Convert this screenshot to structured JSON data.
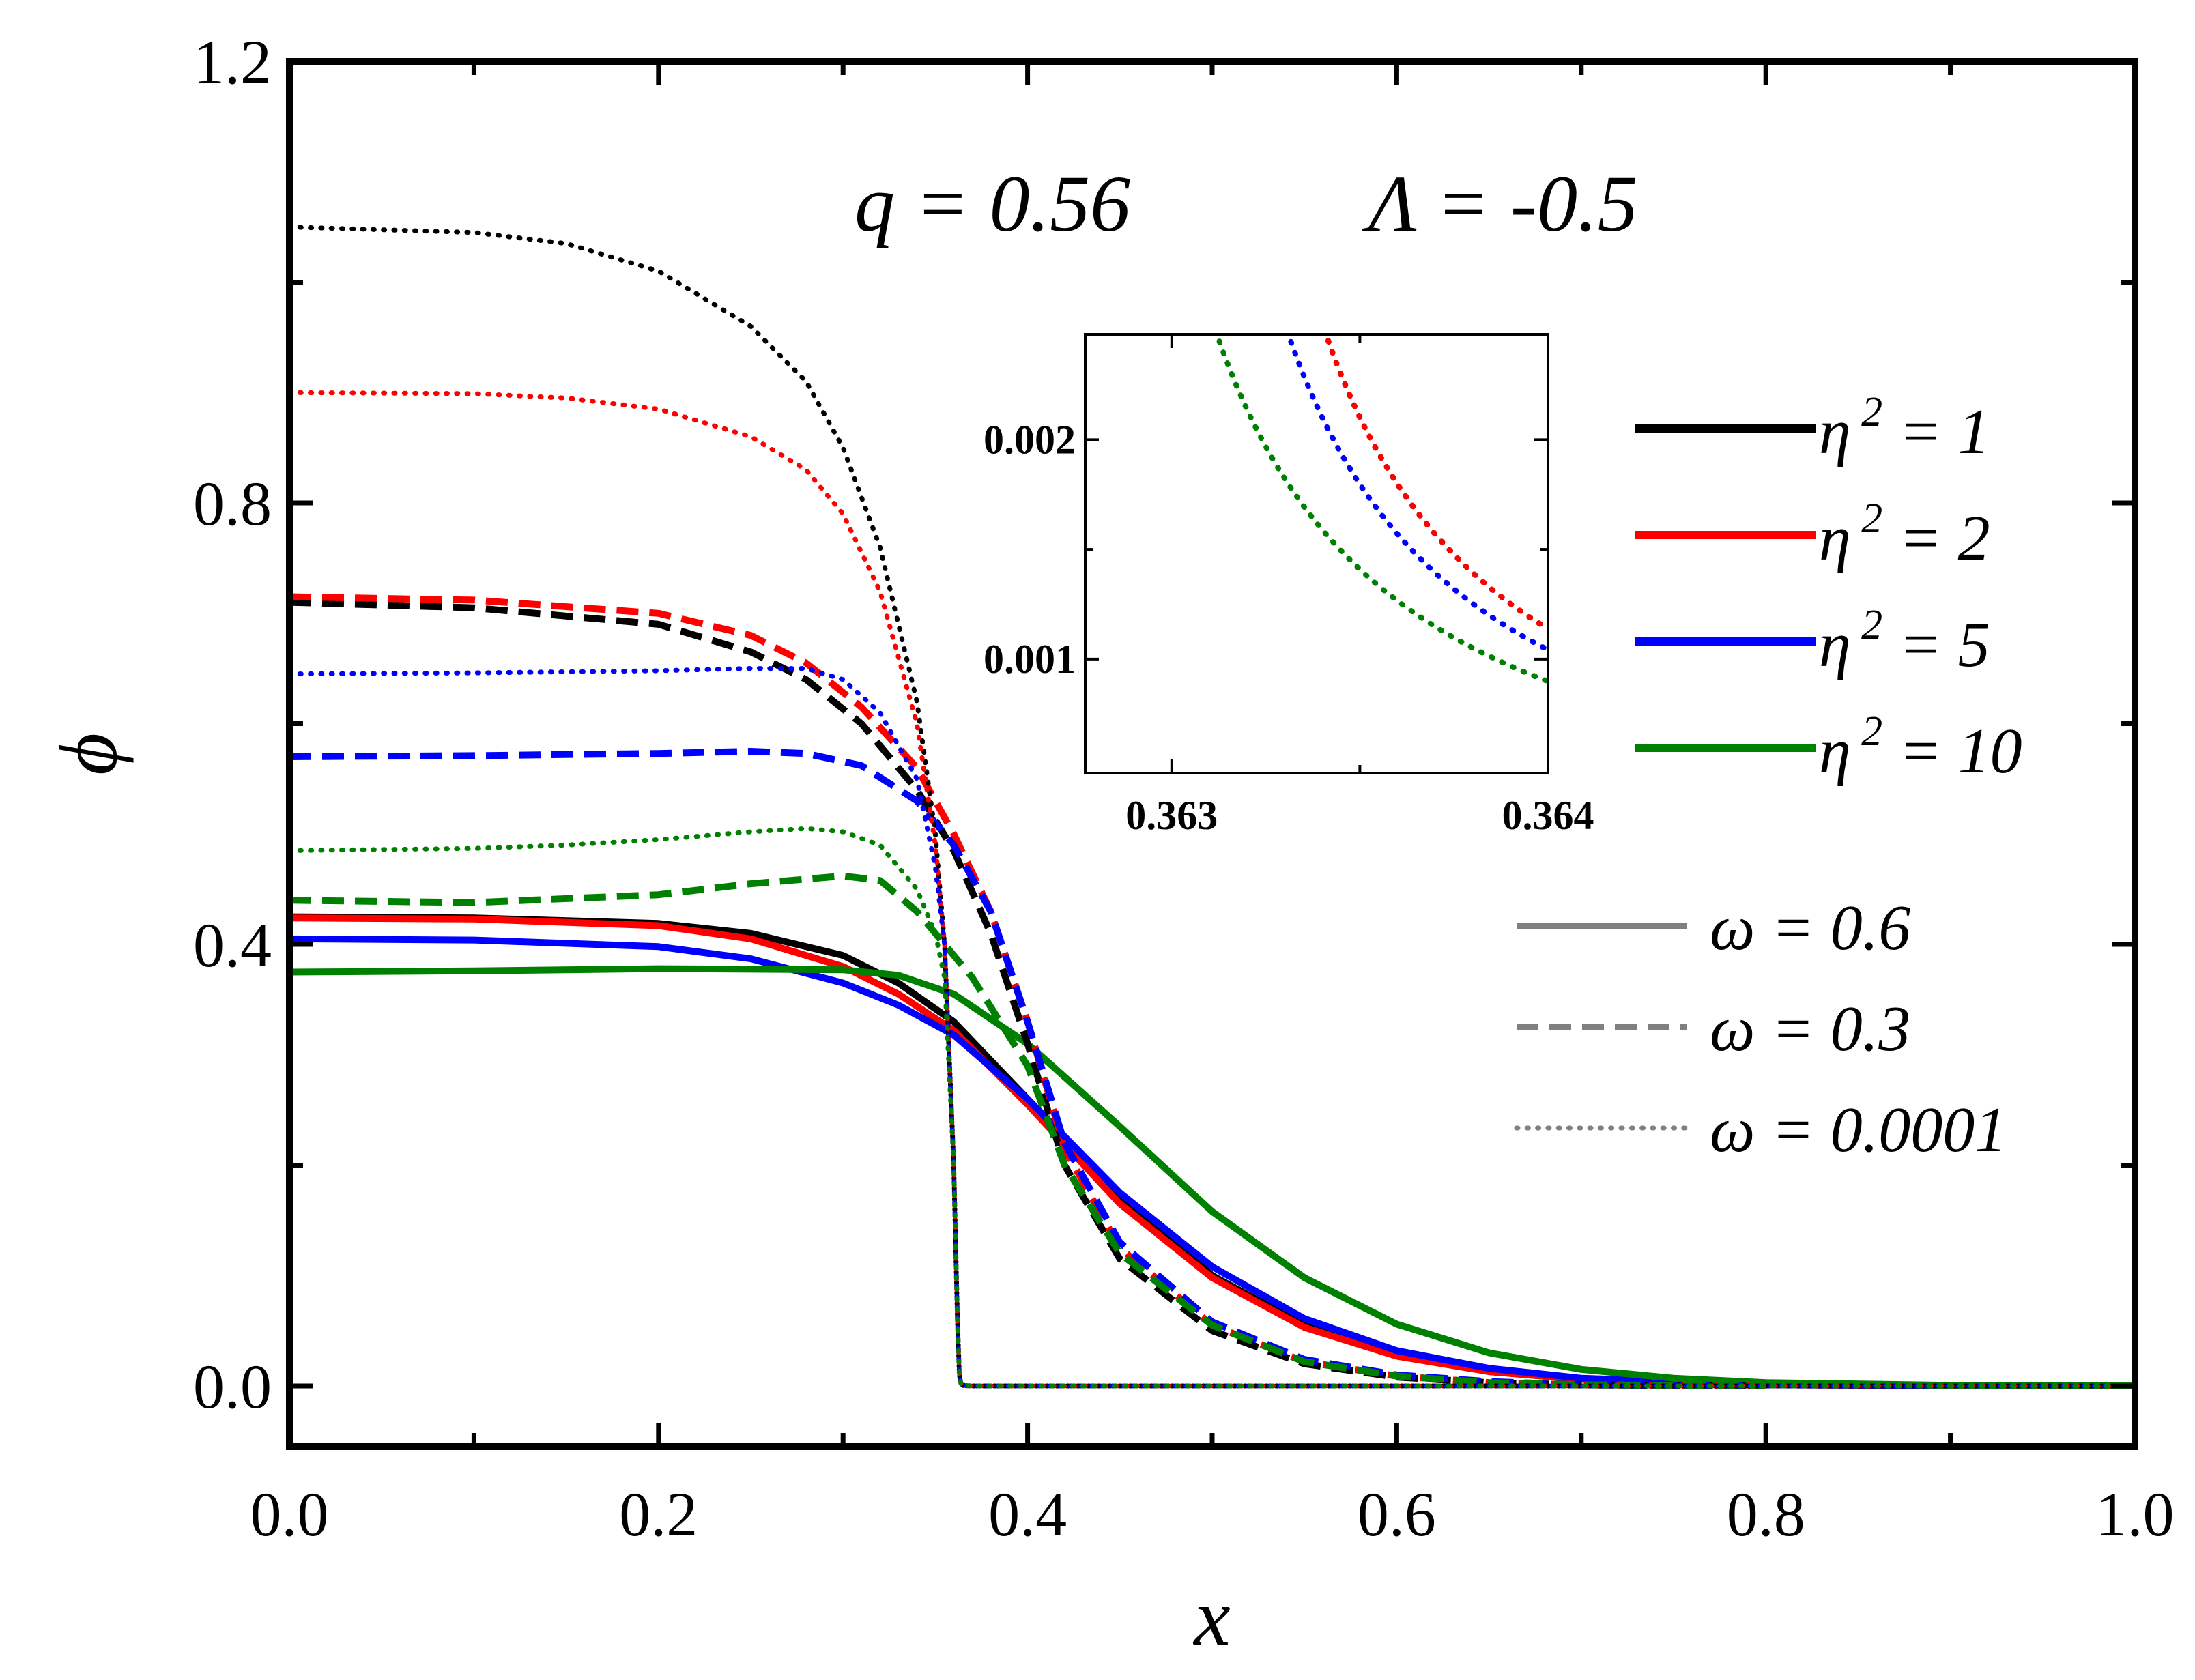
{
  "chart_data": {
    "type": "line",
    "title": "",
    "xlabel": "x",
    "ylabel": "ϕ",
    "xlim": [
      0.0,
      1.0
    ],
    "ylim": [
      -0.055,
      1.2
    ],
    "xticks": [
      0.0,
      0.2,
      0.4,
      0.6,
      0.8,
      1.0
    ],
    "xtick_labels": [
      "0.0",
      "0.2",
      "0.4",
      "0.6",
      "0.8",
      "1.0"
    ],
    "yticks": [
      0.0,
      0.4,
      0.8,
      1.2
    ],
    "ytick_labels": [
      "0.0",
      "0.4",
      "0.8",
      "1.2"
    ],
    "annotation": {
      "q": "q = 0.56",
      "lambda": "Λ = -0.5"
    },
    "legend_eta": [
      {
        "label": "η",
        "sup": "2",
        "rest": " = 1",
        "color": "#000000"
      },
      {
        "label": "η",
        "sup": "2",
        "rest": " = 2",
        "color": "#ff0000"
      },
      {
        "label": "η",
        "sup": "2",
        "rest": " = 5",
        "color": "#0000ff"
      },
      {
        "label": "η",
        "sup": "2",
        "rest": " = 10",
        "color": "#008000"
      }
    ],
    "legend_omega": [
      {
        "label": "ω = 0.6",
        "style": "solid",
        "color": "#808080"
      },
      {
        "label": "ω = 0.3",
        "style": "dashed",
        "color": "#808080"
      },
      {
        "label": "ω = 0.0001",
        "style": "dotted",
        "color": "#808080"
      }
    ],
    "series": [
      {
        "name": "η²=1, ω=0.6",
        "color": "#000000",
        "style": "solid",
        "x": [
          0,
          0.1,
          0.2,
          0.25,
          0.3,
          0.33,
          0.36,
          0.4,
          0.45,
          0.5,
          0.55,
          0.6,
          0.65,
          0.7,
          0.8,
          1.0
        ],
        "y": [
          0.425,
          0.424,
          0.419,
          0.41,
          0.39,
          0.365,
          0.33,
          0.26,
          0.17,
          0.1,
          0.055,
          0.028,
          0.013,
          0.006,
          0.001,
          0.0
        ]
      },
      {
        "name": "η²=2, ω=0.6",
        "color": "#ff0000",
        "style": "solid",
        "x": [
          0,
          0.1,
          0.2,
          0.25,
          0.3,
          0.33,
          0.36,
          0.4,
          0.45,
          0.5,
          0.55,
          0.6,
          0.65,
          0.7,
          0.8,
          1.0
        ],
        "y": [
          0.424,
          0.423,
          0.417,
          0.405,
          0.38,
          0.355,
          0.322,
          0.255,
          0.165,
          0.098,
          0.053,
          0.027,
          0.013,
          0.006,
          0.001,
          0.0
        ]
      },
      {
        "name": "η²=5, ω=0.6",
        "color": "#0000ff",
        "style": "solid",
        "x": [
          0,
          0.1,
          0.2,
          0.25,
          0.3,
          0.33,
          0.36,
          0.4,
          0.45,
          0.5,
          0.55,
          0.6,
          0.65,
          0.7,
          0.8,
          1.0
        ],
        "y": [
          0.405,
          0.404,
          0.398,
          0.387,
          0.365,
          0.345,
          0.318,
          0.26,
          0.175,
          0.108,
          0.061,
          0.032,
          0.016,
          0.007,
          0.001,
          0.0
        ]
      },
      {
        "name": "η²=10, ω=0.6",
        "color": "#008000",
        "style": "solid",
        "x": [
          0,
          0.1,
          0.2,
          0.3,
          0.33,
          0.36,
          0.4,
          0.45,
          0.5,
          0.55,
          0.6,
          0.65,
          0.7,
          0.75,
          0.8,
          0.9,
          1.0
        ],
        "y": [
          0.375,
          0.376,
          0.378,
          0.377,
          0.372,
          0.355,
          0.31,
          0.235,
          0.158,
          0.098,
          0.056,
          0.03,
          0.015,
          0.007,
          0.003,
          0.0005,
          0.0
        ]
      },
      {
        "name": "η²=1, ω=0.3",
        "color": "#000000",
        "style": "dashed",
        "x": [
          0,
          0.1,
          0.2,
          0.25,
          0.28,
          0.31,
          0.34,
          0.36,
          0.38,
          0.4,
          0.42,
          0.45,
          0.5,
          0.55,
          0.6,
          0.65,
          0.7,
          0.8
        ],
        "y": [
          0.71,
          0.705,
          0.69,
          0.665,
          0.64,
          0.6,
          0.54,
          0.485,
          0.41,
          0.31,
          0.2,
          0.115,
          0.05,
          0.02,
          0.008,
          0.003,
          0.001,
          0.0
        ]
      },
      {
        "name": "η²=2, ω=0.3",
        "color": "#ff0000",
        "style": "dashed",
        "x": [
          0,
          0.1,
          0.2,
          0.25,
          0.28,
          0.31,
          0.34,
          0.36,
          0.38,
          0.4,
          0.42,
          0.45,
          0.5,
          0.55,
          0.6,
          0.65,
          0.7,
          0.8
        ],
        "y": [
          0.715,
          0.712,
          0.7,
          0.68,
          0.655,
          0.615,
          0.56,
          0.5,
          0.43,
          0.33,
          0.215,
          0.125,
          0.055,
          0.022,
          0.009,
          0.003,
          0.001,
          0.0
        ]
      },
      {
        "name": "η²=5, ω=0.3",
        "color": "#0000ff",
        "style": "dashed",
        "x": [
          0,
          0.1,
          0.2,
          0.25,
          0.28,
          0.31,
          0.34,
          0.36,
          0.38,
          0.4,
          0.42,
          0.45,
          0.5,
          0.55,
          0.6,
          0.65,
          0.7,
          0.8
        ],
        "y": [
          0.57,
          0.571,
          0.573,
          0.575,
          0.573,
          0.562,
          0.53,
          0.49,
          0.43,
          0.33,
          0.22,
          0.13,
          0.058,
          0.024,
          0.01,
          0.004,
          0.001,
          0.0
        ]
      },
      {
        "name": "η²=10, ω=0.3",
        "color": "#008000",
        "style": "dashed",
        "x": [
          0,
          0.1,
          0.2,
          0.25,
          0.3,
          0.32,
          0.34,
          0.37,
          0.4,
          0.42,
          0.45,
          0.5,
          0.55,
          0.6,
          0.65,
          0.7,
          0.8
        ],
        "y": [
          0.44,
          0.438,
          0.445,
          0.455,
          0.462,
          0.458,
          0.43,
          0.37,
          0.29,
          0.2,
          0.12,
          0.055,
          0.022,
          0.009,
          0.003,
          0.001,
          0.0
        ]
      },
      {
        "name": "η²=1, ω=0.0001",
        "color": "#000000",
        "style": "dotted",
        "x": [
          0,
          0.1,
          0.15,
          0.2,
          0.25,
          0.28,
          0.3,
          0.32,
          0.34,
          0.35,
          0.355,
          0.36,
          0.362,
          0.363,
          0.364,
          0.365,
          0.37,
          0.45,
          0.6,
          0.8,
          1.0
        ],
        "y": [
          1.05,
          1.045,
          1.035,
          1.01,
          0.96,
          0.91,
          0.85,
          0.76,
          0.62,
          0.5,
          0.4,
          0.2,
          0.06,
          0.01,
          0.0012,
          0.0005,
          0.0,
          0.0,
          0.0,
          0.0,
          0.0
        ]
      },
      {
        "name": "η²=2, ω=0.0001",
        "color": "#ff0000",
        "style": "dotted",
        "x": [
          0,
          0.1,
          0.15,
          0.2,
          0.25,
          0.28,
          0.3,
          0.32,
          0.34,
          0.35,
          0.355,
          0.36,
          0.362,
          0.363,
          0.364,
          0.365,
          0.37,
          0.45,
          0.6,
          0.8,
          1.0
        ],
        "y": [
          0.9,
          0.899,
          0.895,
          0.885,
          0.86,
          0.83,
          0.79,
          0.72,
          0.6,
          0.49,
          0.4,
          0.2,
          0.06,
          0.01,
          0.0012,
          0.0005,
          0.0,
          0.0,
          0.0,
          0.0,
          0.0
        ]
      },
      {
        "name": "η²=5, ω=0.0001",
        "color": "#0000ff",
        "style": "dotted",
        "x": [
          0,
          0.1,
          0.15,
          0.2,
          0.25,
          0.28,
          0.3,
          0.32,
          0.34,
          0.35,
          0.355,
          0.36,
          0.362,
          0.363,
          0.364,
          0.365,
          0.37,
          0.45,
          0.6,
          0.8,
          1.0
        ],
        "y": [
          0.645,
          0.646,
          0.647,
          0.648,
          0.65,
          0.65,
          0.64,
          0.61,
          0.55,
          0.47,
          0.4,
          0.2,
          0.06,
          0.01,
          0.001,
          0.0004,
          0.0,
          0.0,
          0.0,
          0.0,
          0.0
        ]
      },
      {
        "name": "η²=10, ω=0.0001",
        "color": "#008000",
        "style": "dotted",
        "x": [
          0,
          0.1,
          0.15,
          0.2,
          0.25,
          0.28,
          0.3,
          0.32,
          0.34,
          0.35,
          0.355,
          0.36,
          0.362,
          0.363,
          0.364,
          0.365,
          0.37,
          0.45,
          0.6,
          0.8,
          1.0
        ],
        "y": [
          0.485,
          0.487,
          0.49,
          0.495,
          0.502,
          0.505,
          0.502,
          0.49,
          0.45,
          0.41,
          0.37,
          0.2,
          0.06,
          0.01,
          0.0008,
          0.0003,
          0.0,
          0.0,
          0.0,
          0.0,
          0.0
        ]
      }
    ],
    "inset": {
      "xlim": [
        0.36277,
        0.364
      ],
      "ylim": [
        0.00048,
        0.00248
      ],
      "xticks": [
        0.363,
        0.364
      ],
      "xtick_labels": [
        "0.363",
        "0.364"
      ],
      "yticks": [
        0.001,
        0.002
      ],
      "ytick_labels": [
        "0.001",
        "0.002"
      ],
      "series": [
        {
          "name": "η²=1, ω=0.0001",
          "color": "#000000",
          "style": "dotted",
          "x0": 0.36291,
          "k": 1.24
        },
        {
          "name": "η²=2, ω=0.0001",
          "color": "#ff0000",
          "style": "dotted",
          "x0": 0.36291,
          "k": 1.24
        },
        {
          "name": "η²=5, ω=0.0001",
          "color": "#0000ff",
          "style": "dotted",
          "x0": 0.36281,
          "k": 1.24
        },
        {
          "name": "η²=10, ω=0.0001",
          "color": "#008000",
          "style": "dotted",
          "x0": 0.36262,
          "k": 1.24
        }
      ]
    }
  }
}
